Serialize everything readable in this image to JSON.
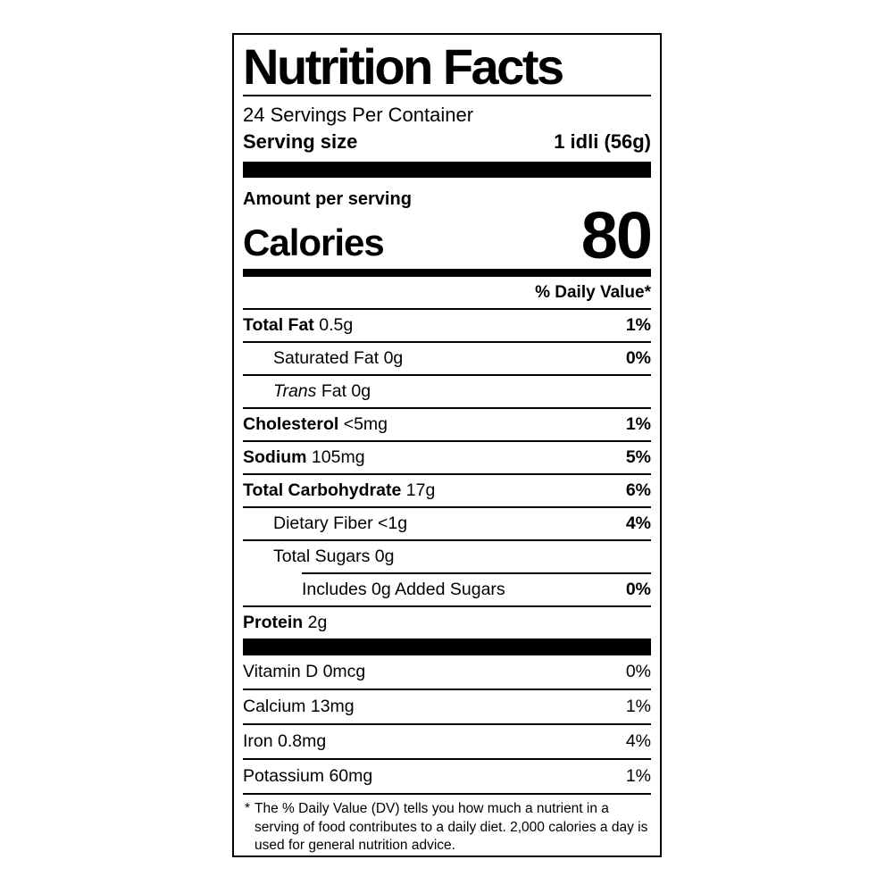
{
  "colors": {
    "text": "#000000",
    "background": "#ffffff"
  },
  "label": {
    "title": "Nutrition Facts",
    "servings_per_container": "24 Servings Per Container",
    "serving_size_label": "Serving size",
    "serving_size_value": "1 idli (56g)",
    "amount_per_serving_label": "Amount per serving",
    "calories_label": "Calories",
    "calories_value": "80",
    "daily_value_header": "% Daily Value*",
    "nutrients": [
      {
        "bold": "Total Fat",
        "italic": "",
        "text": "0.5g",
        "dv": "1%",
        "dv_bold": true,
        "indent": 0,
        "border_bottom": true,
        "partial_rule_above": false
      },
      {
        "bold": "",
        "italic": "",
        "text": "Saturated Fat 0g",
        "dv": "0%",
        "dv_bold": true,
        "indent": 1,
        "border_bottom": true,
        "partial_rule_above": false
      },
      {
        "bold": "",
        "italic": "Trans",
        "text": "Fat 0g",
        "dv": "",
        "dv_bold": false,
        "indent": 1,
        "border_bottom": true,
        "partial_rule_above": false
      },
      {
        "bold": "Cholesterol",
        "italic": "",
        "text": "<5mg",
        "dv": "1%",
        "dv_bold": true,
        "indent": 0,
        "border_bottom": true,
        "partial_rule_above": false
      },
      {
        "bold": "Sodium",
        "italic": "",
        "text": "105mg",
        "dv": "5%",
        "dv_bold": true,
        "indent": 0,
        "border_bottom": true,
        "partial_rule_above": false
      },
      {
        "bold": "Total Carbohydrate",
        "italic": "",
        "text": "17g",
        "dv": "6%",
        "dv_bold": true,
        "indent": 0,
        "border_bottom": true,
        "partial_rule_above": false
      },
      {
        "bold": "",
        "italic": "",
        "text": "Dietary Fiber <1g",
        "dv": "4%",
        "dv_bold": true,
        "indent": 1,
        "border_bottom": true,
        "partial_rule_above": false
      },
      {
        "bold": "",
        "italic": "",
        "text": "Total Sugars 0g",
        "dv": "",
        "dv_bold": false,
        "indent": 1,
        "border_bottom": false,
        "partial_rule_above": false
      },
      {
        "bold": "",
        "italic": "",
        "text": "Includes 0g Added Sugars",
        "dv": "0%",
        "dv_bold": true,
        "indent": 2,
        "border_bottom": true,
        "partial_rule_above": true
      },
      {
        "bold": "Protein",
        "italic": "",
        "text": "2g",
        "dv": "",
        "dv_bold": false,
        "indent": 0,
        "border_bottom": false,
        "partial_rule_above": false
      }
    ],
    "vitamins": [
      {
        "bold": "",
        "italic": "",
        "text": "Vitamin D 0mcg",
        "dv": "0%",
        "dv_bold": false,
        "indent": 0,
        "border_bottom": true,
        "partial_rule_above": false
      },
      {
        "bold": "",
        "italic": "",
        "text": "Calcium 13mg",
        "dv": "1%",
        "dv_bold": false,
        "indent": 0,
        "border_bottom": true,
        "partial_rule_above": false
      },
      {
        "bold": "",
        "italic": "",
        "text": "Iron 0.8mg",
        "dv": "4%",
        "dv_bold": false,
        "indent": 0,
        "border_bottom": true,
        "partial_rule_above": false
      },
      {
        "bold": "",
        "italic": "",
        "text": "Potassium 60mg",
        "dv": "1%",
        "dv_bold": false,
        "indent": 0,
        "border_bottom": false,
        "partial_rule_above": false
      }
    ],
    "footnote_marker": "*",
    "footnote_text": "The % Daily Value (DV) tells you how much a nutrient in a serving of food contributes to a daily diet. 2,000 calories a day is used for general nutrition advice."
  }
}
